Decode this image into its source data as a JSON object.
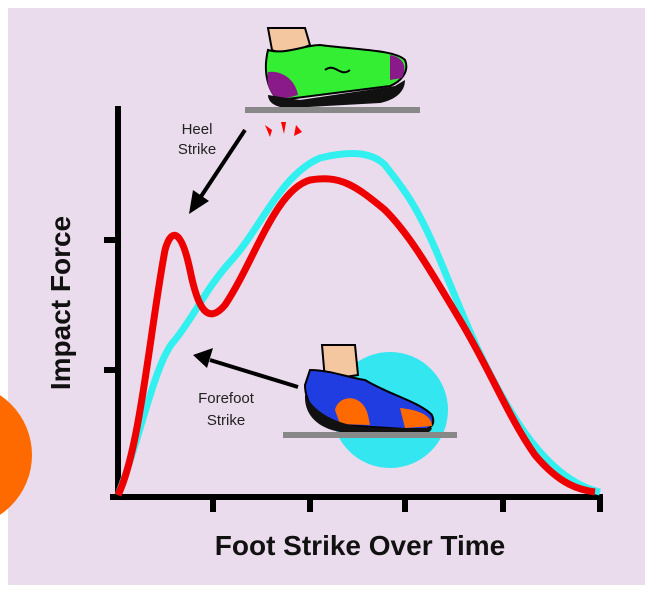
{
  "labels": {
    "y_axis": "Impact Force",
    "x_axis": "Foot Strike Over Time",
    "heel_strike": [
      "Heel",
      "Strike"
    ],
    "forefoot_strike": [
      "Forefoot",
      "Strike"
    ]
  }
}
